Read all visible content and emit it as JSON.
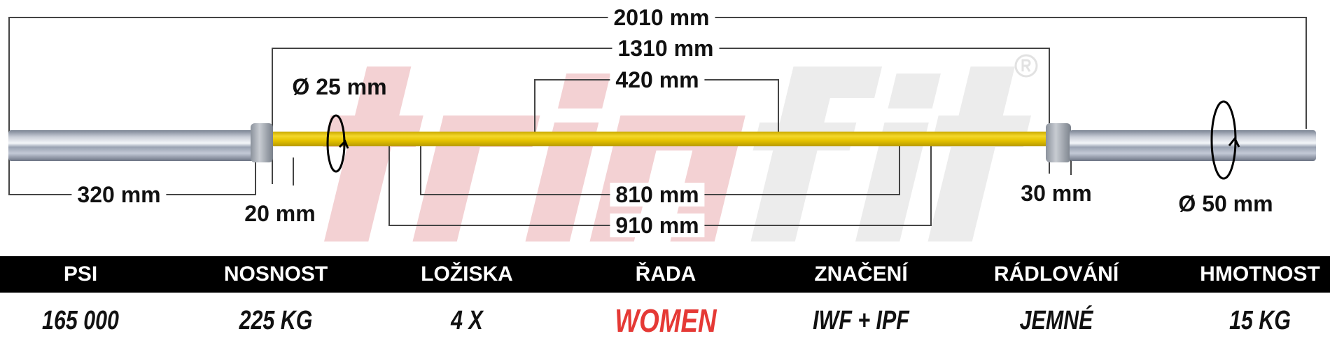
{
  "watermark": {
    "brand_part1": "trin",
    "brand_part2": "fit",
    "registered": "®"
  },
  "dimensions": {
    "total_length": "2010 mm",
    "inner_length": "1310 mm",
    "center_knurl": "420 mm",
    "sleeve_length": "320 mm",
    "collar_width": "20 mm",
    "knurl_mark_810": "810 mm",
    "knurl_mark_910": "910 mm",
    "collar_right": "30 mm",
    "shaft_diameter": "Ø 25 mm",
    "sleeve_diameter": "Ø 50 mm"
  },
  "colors": {
    "shaft": "#f4d82a",
    "band": "#000000",
    "accent": "#e53935"
  },
  "specs": [
    {
      "label": "PSI",
      "value": "165 000"
    },
    {
      "label": "NOSNOST",
      "value": "225 KG"
    },
    {
      "label": "LOŽISKA",
      "value": "4 X"
    },
    {
      "label": "ŘADA",
      "value": "WOMEN"
    },
    {
      "label": "ZNAČENÍ",
      "value": "IWF + IPF"
    },
    {
      "label": "RÁDLOVÁNÍ",
      "value": "JEMNÉ"
    },
    {
      "label": "HMOTNOST",
      "value": "15 KG"
    }
  ]
}
